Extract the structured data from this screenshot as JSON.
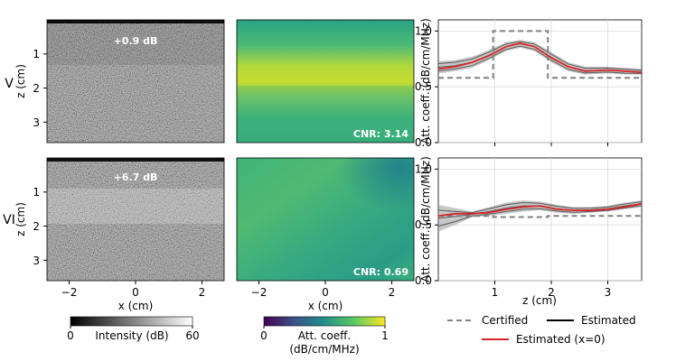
{
  "rows": [
    {
      "label": "V",
      "bmode_annotation": "+0.9 dB",
      "cnr_label": "CNR: 3.14",
      "bmode_inclusion": "dark-top",
      "att_map": "bright-band"
    },
    {
      "label": "VI",
      "bmode_annotation": "+6.7 dB",
      "cnr_label": "CNR: 0.69",
      "bmode_inclusion": "bright-band",
      "att_map": "mild"
    }
  ],
  "image_axes": {
    "xlabel": "x (cm)",
    "ylabel": "z (cm)",
    "xticks": [
      "−2",
      "0",
      "2"
    ],
    "xtick_values": [
      -2,
      0,
      2
    ],
    "xlim": [
      -2.6,
      2.6
    ],
    "yticks": [
      "1",
      "2",
      "3"
    ],
    "ytick_values": [
      1,
      2,
      3
    ],
    "ylim": [
      0,
      3.6
    ]
  },
  "colorbars": {
    "intensity": {
      "label": "Intensity (dB)",
      "min_label": "0",
      "max_label": "60",
      "colormap": "gray"
    },
    "attenuation": {
      "label_line1": "Att. coeff.",
      "label_line2": "(dB/cm/MHz)",
      "min_label": "0",
      "max_label": "1",
      "colormap": "viridis"
    }
  },
  "legend": {
    "certified": "Certified",
    "estimated": "Estimated",
    "estimated_center": "Estimated (x=0)"
  },
  "colors": {
    "certified": "#808080",
    "estimated": "#000000",
    "estimated_center": "#d62728"
  },
  "chart_data": [
    {
      "type": "line",
      "title": "",
      "xlabel": "",
      "ylabel": "Att. coeff. (dB/cm/MHz)",
      "xlim": [
        0,
        3.6
      ],
      "ylim": [
        0,
        1.1
      ],
      "xticks": [
        "1",
        "2",
        "3"
      ],
      "xtick_values": [
        1,
        2,
        3
      ],
      "yticks": [
        "0.0",
        "0.5",
        "1.0"
      ],
      "ytick_values": [
        0,
        0.5,
        1.0
      ],
      "grid": true,
      "series": [
        {
          "name": "Certified",
          "style": "dashed",
          "x": [
            0.0,
            0.97,
            0.97,
            1.94,
            1.94,
            3.6
          ],
          "y": [
            0.58,
            0.58,
            1.0,
            1.0,
            0.58,
            0.58
          ]
        },
        {
          "name": "Estimated (x=0)",
          "style": "solid",
          "x": [
            0.0,
            0.3,
            0.6,
            0.9,
            1.2,
            1.45,
            1.7,
            2.0,
            2.3,
            2.6,
            3.0,
            3.3,
            3.6
          ],
          "y": [
            0.66,
            0.68,
            0.72,
            0.78,
            0.86,
            0.89,
            0.86,
            0.76,
            0.68,
            0.64,
            0.65,
            0.64,
            0.63
          ]
        }
      ],
      "band": {
        "name": "Estimated",
        "x": [
          0.0,
          0.3,
          0.6,
          0.9,
          1.2,
          1.45,
          1.7,
          2.0,
          2.3,
          2.6,
          3.0,
          3.3,
          3.6
        ],
        "y_low": [
          0.62,
          0.64,
          0.67,
          0.74,
          0.82,
          0.85,
          0.82,
          0.72,
          0.64,
          0.61,
          0.62,
          0.61,
          0.61
        ],
        "y_high": [
          0.73,
          0.74,
          0.77,
          0.83,
          0.9,
          0.92,
          0.9,
          0.81,
          0.72,
          0.68,
          0.68,
          0.67,
          0.66
        ]
      }
    },
    {
      "type": "line",
      "title": "",
      "xlabel": "z (cm)",
      "ylabel": "Att. coeff. (dB/cm/MHz)",
      "xlim": [
        0,
        3.6
      ],
      "ylim": [
        0,
        1.1
      ],
      "xticks": [
        "1",
        "2",
        "3"
      ],
      "xtick_values": [
        1,
        2,
        3
      ],
      "yticks": [
        "0.0",
        "0.5",
        "1.0"
      ],
      "ytick_values": [
        0,
        0.5,
        1.0
      ],
      "grid": true,
      "series": [
        {
          "name": "Certified",
          "style": "dashed",
          "x": [
            0.0,
            0.97,
            0.97,
            1.94,
            1.94,
            3.6
          ],
          "y": [
            0.58,
            0.58,
            0.57,
            0.57,
            0.58,
            0.58
          ]
        },
        {
          "name": "Estimated (x=0)",
          "style": "solid",
          "x": [
            0.0,
            0.3,
            0.6,
            0.9,
            1.2,
            1.5,
            1.8,
            2.1,
            2.4,
            2.7,
            3.0,
            3.3,
            3.6
          ],
          "y": [
            0.58,
            0.6,
            0.6,
            0.61,
            0.64,
            0.66,
            0.67,
            0.64,
            0.63,
            0.63,
            0.64,
            0.66,
            0.69
          ]
        }
      ],
      "band": {
        "name": "Estimated",
        "x": [
          0.0,
          0.3,
          0.6,
          0.9,
          1.2,
          1.5,
          1.8,
          2.1,
          2.4,
          2.7,
          3.0,
          3.3,
          3.6
        ],
        "y_low": [
          0.44,
          0.5,
          0.57,
          0.58,
          0.6,
          0.62,
          0.63,
          0.61,
          0.6,
          0.61,
          0.62,
          0.64,
          0.66
        ],
        "y_high": [
          0.68,
          0.65,
          0.62,
          0.66,
          0.7,
          0.72,
          0.71,
          0.68,
          0.66,
          0.66,
          0.67,
          0.7,
          0.72
        ]
      }
    }
  ]
}
